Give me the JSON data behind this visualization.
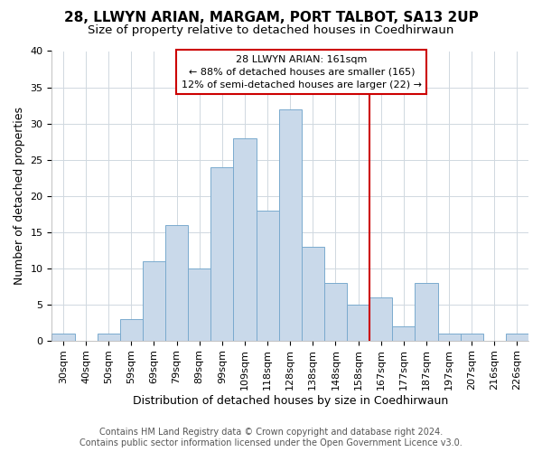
{
  "title1": "28, LLWYN ARIAN, MARGAM, PORT TALBOT, SA13 2UP",
  "title2": "Size of property relative to detached houses in Coedhirwaun",
  "xlabel": "Distribution of detached houses by size in Coedhirwaun",
  "ylabel": "Number of detached properties",
  "bar_color": "#c9d9ea",
  "bar_edge_color": "#7aaace",
  "categories": [
    "30sqm",
    "40sqm",
    "50sqm",
    "59sqm",
    "69sqm",
    "79sqm",
    "89sqm",
    "99sqm",
    "109sqm",
    "118sqm",
    "128sqm",
    "138sqm",
    "148sqm",
    "158sqm",
    "167sqm",
    "177sqm",
    "187sqm",
    "197sqm",
    "207sqm",
    "216sqm",
    "226sqm"
  ],
  "values": [
    1,
    0,
    1,
    3,
    11,
    16,
    10,
    24,
    28,
    18,
    32,
    13,
    8,
    5,
    6,
    2,
    8,
    1,
    1,
    0,
    1
  ],
  "vline_x_index": 14,
  "vline_color": "#cc0000",
  "annotation_text": "28 LLWYN ARIAN: 161sqm\n← 88% of detached houses are smaller (165)\n12% of semi-detached houses are larger (22) →",
  "annotation_box_color": "#cc0000",
  "ylim": [
    0,
    40
  ],
  "yticks": [
    0,
    5,
    10,
    15,
    20,
    25,
    30,
    35,
    40
  ],
  "footer": "Contains HM Land Registry data © Crown copyright and database right 2024.\nContains public sector information licensed under the Open Government Licence v3.0.",
  "bg_color": "#ffffff",
  "plot_bg_color": "#ffffff",
  "grid_color": "#d0d8e0",
  "title_fontsize": 11,
  "subtitle_fontsize": 9.5,
  "tick_fontsize": 8,
  "label_fontsize": 9,
  "footer_fontsize": 7
}
